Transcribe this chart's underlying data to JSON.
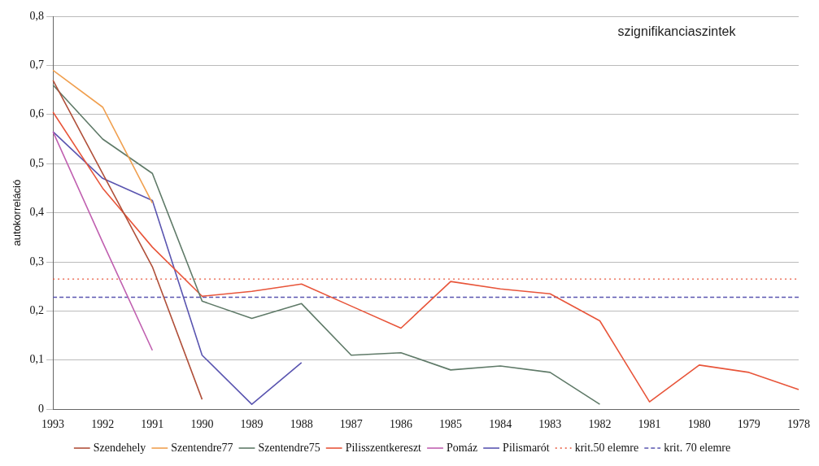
{
  "chart_data": {
    "type": "line",
    "ylabel": "autokorreláció",
    "categories": [
      "1993",
      "1992",
      "1991",
      "1990",
      "1989",
      "1988",
      "1987",
      "1986",
      "1985",
      "1984",
      "1983",
      "1982",
      "1981",
      "1980",
      "1979",
      "1978"
    ],
    "series": [
      {
        "name": "Szendehely",
        "color": "#b0503a",
        "values": [
          0.67,
          0.48,
          0.29,
          0.02,
          null,
          null,
          null,
          null,
          null,
          null,
          null,
          null,
          null,
          null,
          null,
          null
        ]
      },
      {
        "name": "Szentendre77",
        "color": "#f0a050",
        "values": [
          0.69,
          0.615,
          0.42,
          null,
          null,
          null,
          null,
          null,
          null,
          null,
          null,
          null,
          null,
          null,
          null,
          null
        ]
      },
      {
        "name": "Szentendre75",
        "color": "#5f7a68",
        "values": [
          0.66,
          0.55,
          0.48,
          0.22,
          0.185,
          0.215,
          0.11,
          0.115,
          0.08,
          0.088,
          0.075,
          0.01,
          null,
          null,
          null,
          null
        ]
      },
      {
        "name": "Pilisszentkereszt",
        "color": "#e8553a",
        "values": [
          0.605,
          0.45,
          0.33,
          0.23,
          0.24,
          0.255,
          0.21,
          0.165,
          0.26,
          0.245,
          0.235,
          0.18,
          0.015,
          0.09,
          0.075,
          0.04
        ]
      },
      {
        "name": "Pomáz",
        "color": "#c060b0",
        "values": [
          0.565,
          0.34,
          0.12,
          null,
          null,
          null,
          null,
          null,
          null,
          null,
          null,
          null,
          null,
          null,
          null,
          null
        ]
      },
      {
        "name": "Pilismarót",
        "color": "#5a55b0",
        "values": [
          0.565,
          0.47,
          0.425,
          0.11,
          0.01,
          0.095,
          null,
          null,
          null,
          null,
          null,
          null,
          null,
          null,
          null,
          null
        ]
      }
    ],
    "ref_lines": [
      {
        "axis": "y",
        "value": 0.265,
        "label": "krit.50 elemre",
        "color": "#e8553a",
        "line_style": "dotted"
      },
      {
        "axis": "y",
        "value": 0.228,
        "label": "krit. 70 elemre",
        "color": "#5a55b0",
        "line_style": "dashed"
      }
    ],
    "annotations": [
      "szignifikanciaszintek"
    ],
    "ylim": [
      0,
      0.8
    ],
    "yticks": [
      {
        "value": 0,
        "label": "0"
      },
      {
        "value": 0.1,
        "label": "0,1"
      },
      {
        "value": 0.2,
        "label": "0,2"
      },
      {
        "value": 0.3,
        "label": "0,3"
      },
      {
        "value": 0.4,
        "label": "0,4"
      },
      {
        "value": 0.5,
        "label": "0,5"
      },
      {
        "value": 0.6,
        "label": "0,6"
      },
      {
        "value": 0.7,
        "label": "0,7"
      },
      {
        "value": 0.8,
        "label": "0,8"
      }
    ],
    "grid": "y",
    "legend": "bottom",
    "marker": "none",
    "line_style": "solid"
  }
}
